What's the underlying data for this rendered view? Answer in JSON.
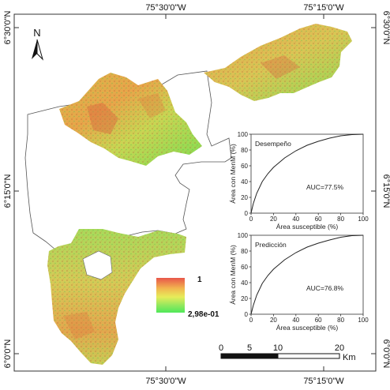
{
  "map": {
    "north_label": "N",
    "coords_top": [
      "75°30'0\"W",
      "75°15'0\"W"
    ],
    "coords_bottom": [
      "75°30'0\"W",
      "75°15'0\"W"
    ],
    "coords_left": [
      "6°30'0\"N",
      "6°15'0\"N",
      "6°0'0\"N"
    ],
    "coords_right": [
      "6°30'0\"N",
      "6°15'0\"N",
      "6°0'0\"N"
    ],
    "legend": {
      "high_label": "1",
      "low_label": "2,98e-01",
      "colors": [
        "#e8564a",
        "#f2b54f",
        "#e6ec5a",
        "#8ee85e",
        "#4fe85a"
      ]
    },
    "scalebar": {
      "ticks": [
        "0",
        "5",
        "10",
        "20"
      ],
      "unit": "Km"
    }
  },
  "chart_data": [
    {
      "type": "line",
      "title": "Desempeño",
      "xlabel": "Área susceptible (%)",
      "ylabel": "Área con MenM (%)",
      "annotation": "AUC=77.5%",
      "xlim": [
        0,
        100
      ],
      "ylim": [
        0,
        100
      ],
      "xticks": [
        "0",
        "20",
        "40",
        "60",
        "80",
        "100"
      ],
      "yticks": [
        "0",
        "20",
        "40",
        "60",
        "80",
        "100"
      ],
      "x": [
        0,
        2,
        5,
        10,
        15,
        20,
        30,
        40,
        50,
        60,
        70,
        80,
        90,
        100
      ],
      "y": [
        0,
        12,
        25,
        40,
        50,
        58,
        70,
        79,
        86,
        91,
        95,
        98,
        99.5,
        100
      ]
    },
    {
      "type": "line",
      "title": "Predicción",
      "xlabel": "Área susceptible (%)",
      "ylabel": "Área con MenM (%)",
      "annotation": "AUC=76.8%",
      "xlim": [
        0,
        100
      ],
      "ylim": [
        0,
        100
      ],
      "xticks": [
        "0",
        "20",
        "40",
        "60",
        "80",
        "100"
      ],
      "yticks": [
        "0",
        "20",
        "40",
        "60",
        "80",
        "100"
      ],
      "x": [
        0,
        2,
        5,
        10,
        15,
        20,
        30,
        40,
        50,
        60,
        70,
        80,
        90,
        100
      ],
      "y": [
        0,
        11,
        24,
        39,
        49,
        57,
        69,
        78,
        85,
        90,
        94,
        97.5,
        99.5,
        100
      ]
    }
  ]
}
